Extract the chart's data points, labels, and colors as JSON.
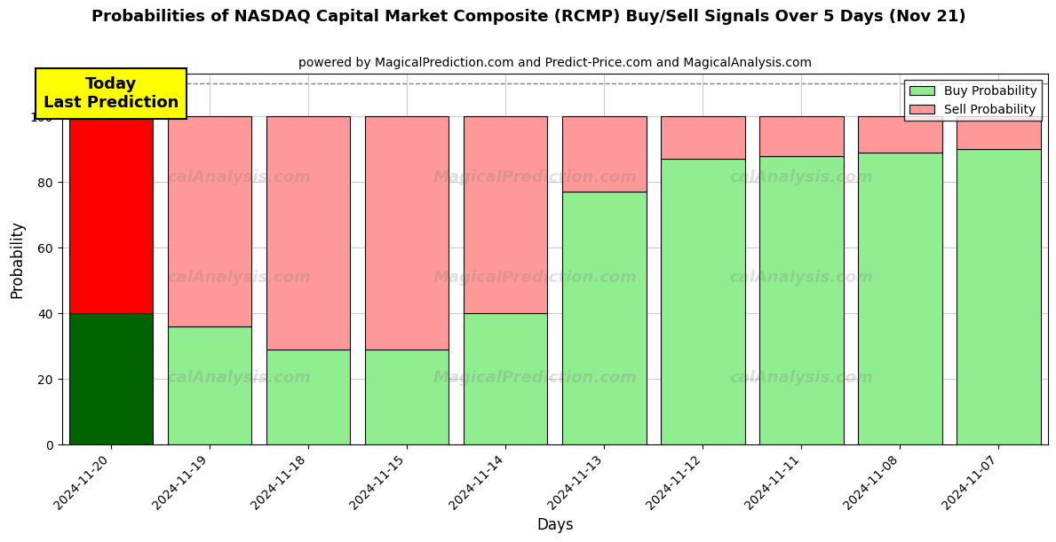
{
  "title": "Probabilities of NASDAQ Capital Market Composite (RCMP) Buy/Sell Signals Over 5 Days (Nov 21)",
  "subtitle": "powered by MagicalPrediction.com and Predict-Price.com and MagicalAnalysis.com",
  "xlabel": "Days",
  "ylabel": "Probability",
  "categories": [
    "2024-11-20",
    "2024-11-19",
    "2024-11-18",
    "2024-11-15",
    "2024-11-14",
    "2024-11-13",
    "2024-11-12",
    "2024-11-11",
    "2024-11-08",
    "2024-11-07"
  ],
  "buy_values": [
    40,
    36,
    29,
    29,
    40,
    77,
    87,
    88,
    89,
    90
  ],
  "sell_values": [
    60,
    64,
    71,
    71,
    60,
    23,
    13,
    12,
    11,
    10
  ],
  "today_buy_color": "#006400",
  "today_sell_color": "#FF0000",
  "buy_color": "#90EE90",
  "sell_color": "#FF9999",
  "today_box_color": "#FFFF00",
  "today_box_text": "Today\nLast Prediction",
  "ylim": [
    0,
    113
  ],
  "yticks": [
    0,
    20,
    40,
    60,
    80,
    100
  ],
  "dashed_line_y": 110,
  "background_color": "#ffffff",
  "grid_color": "#cccccc",
  "watermark_left": "calAnalysis.com",
  "watermark_mid": "MagicalPrediction.com",
  "bar_edge_color": "#000000",
  "bar_linewidth": 0.8,
  "bar_width": 0.85,
  "legend_buy_label": "Buy Probability",
  "legend_sell_label": "Sell Probability"
}
